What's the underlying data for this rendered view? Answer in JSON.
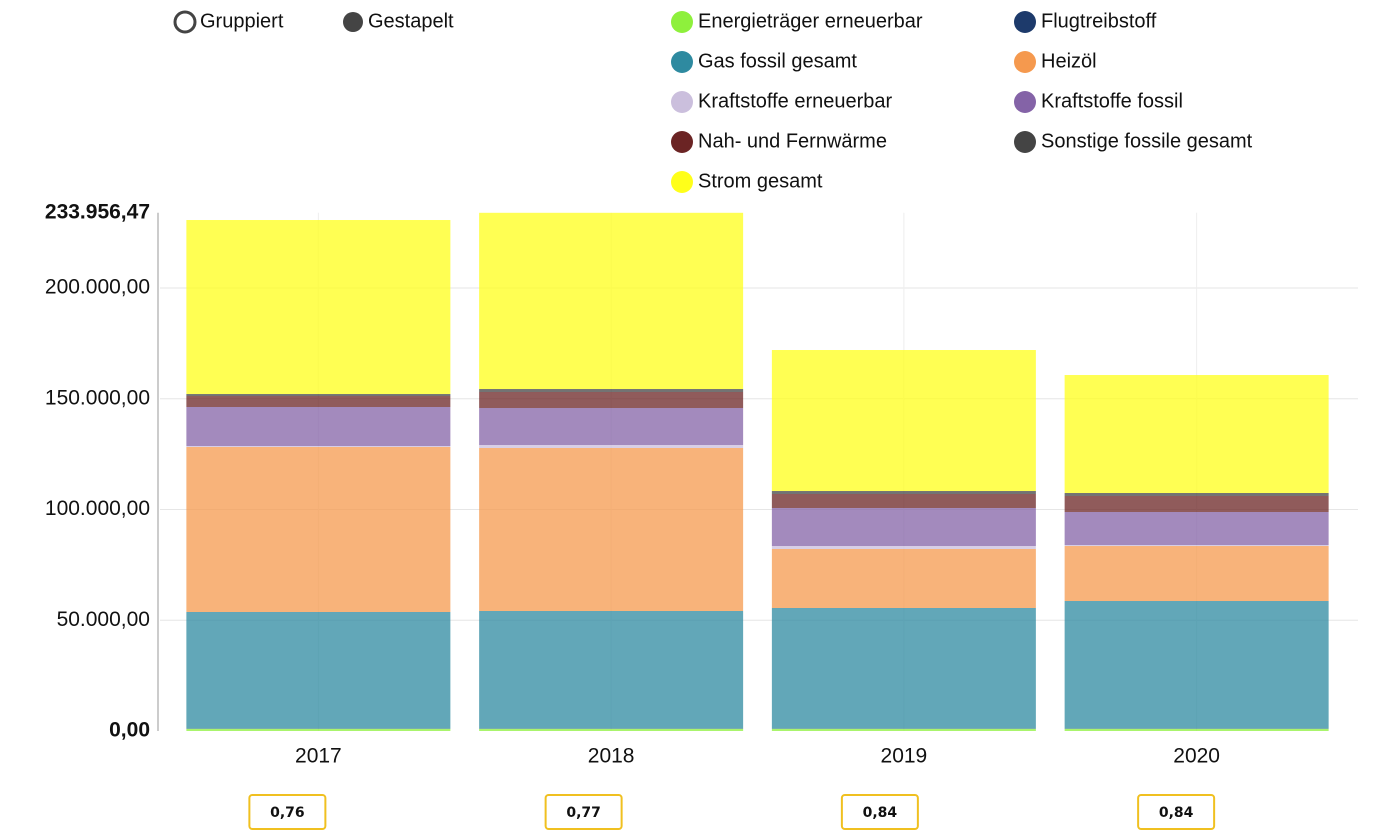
{
  "chart_data": {
    "type": "bar",
    "stacked": true,
    "modes": [
      "Gruppiert",
      "Gestapelt"
    ],
    "categories": [
      "2017",
      "2018",
      "2019",
      "2020"
    ],
    "series": [
      {
        "name": "Energieträger erneuerbar",
        "color": "#8ef03c",
        "values": [
          1000,
          1000,
          1000,
          1000
        ]
      },
      {
        "name": "Flugtreibstoff",
        "color": "#1d3a6b",
        "values": [
          100,
          100,
          100,
          100
        ]
      },
      {
        "name": "Gas fossil gesamt",
        "color": "#2e8aa0",
        "values": [
          52625,
          53080,
          54430,
          57590
        ]
      },
      {
        "name": "Heizöl",
        "color": "#f5994e",
        "values": [
          74495,
          73590,
          26640,
          24830
        ]
      },
      {
        "name": "Kraftstoffe erneuerbar",
        "color": "#cbbfdd",
        "values": [
          450,
          1350,
          1350,
          450
        ]
      },
      {
        "name": "Kraftstoffe fossil",
        "color": "#8463a7",
        "values": [
          17610,
          16700,
          17160,
          14900
        ]
      },
      {
        "name": "Nah- und Fernwärme",
        "color": "#6b2424",
        "values": [
          4960,
          7230,
          6320,
          7230
        ]
      },
      {
        "name": "Sonstige fossile gesamt",
        "color": "#444444",
        "values": [
          900,
          1350,
          1350,
          1350
        ]
      },
      {
        "name": "Strom gesamt",
        "color": "#ffff1a",
        "values": [
          78560,
          79556,
          63660,
          53270
        ]
      }
    ],
    "ylim": [
      0,
      233956.47
    ],
    "yticks": [
      {
        "value": 0,
        "label": "0,00"
      },
      {
        "value": 50000,
        "label": "50.000,00"
      },
      {
        "value": 100000,
        "label": "100.000,00"
      },
      {
        "value": 150000,
        "label": "150.000,00"
      },
      {
        "value": 200000,
        "label": "200.000,00"
      },
      {
        "value": 233956.47,
        "label": "233.956,47"
      }
    ],
    "grid": true,
    "annotations": [
      "0,76",
      "0,77",
      "0,84",
      "0,84"
    ]
  }
}
